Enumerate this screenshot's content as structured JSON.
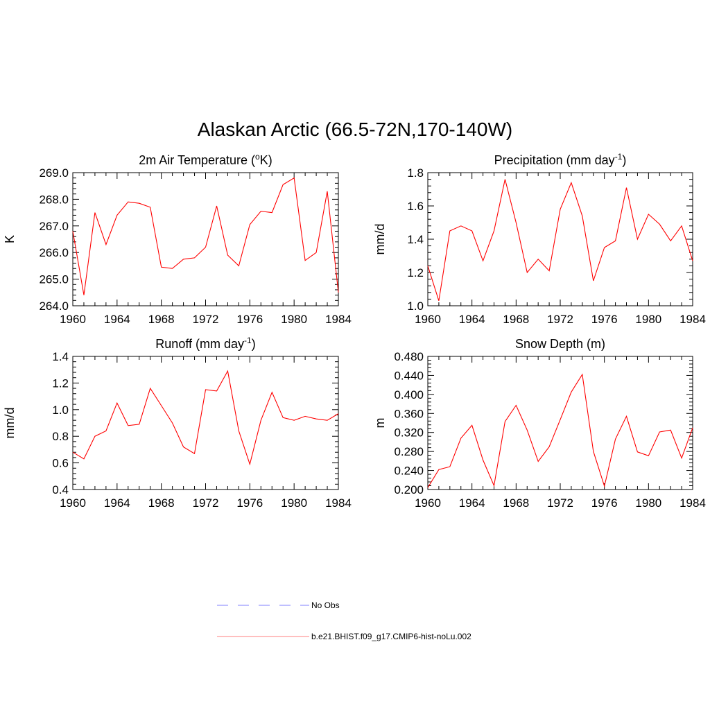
{
  "title": "Alaskan Arctic (66.5-72N,170-140W)",
  "colors": {
    "model": "#ff0000",
    "obs": "#9999ff",
    "axis": "#000000"
  },
  "legend": {
    "entries": [
      {
        "label": "No Obs",
        "style": "dashed",
        "color": "#9999ff"
      },
      {
        "label": "b.e21.BHIST.f09_g17.CMIP6-hist-noLu.002",
        "style": "solid",
        "color": "#ff9999"
      }
    ]
  },
  "chart_data": [
    {
      "type": "line",
      "title": "2m Air Temperature (",
      "title_sup": "o",
      "title_after": "K)",
      "ylabel": "K",
      "xlim": [
        1960,
        1984
      ],
      "xticks": [
        1960,
        1964,
        1968,
        1972,
        1976,
        1980,
        1984
      ],
      "ylim": [
        264.0,
        269.0
      ],
      "yticks": [
        "264.0",
        "265.0",
        "266.0",
        "267.0",
        "268.0",
        "269.0"
      ],
      "x": [
        1960,
        1961,
        1962,
        1963,
        1964,
        1965,
        1966,
        1967,
        1968,
        1969,
        1970,
        1971,
        1972,
        1973,
        1974,
        1975,
        1976,
        1977,
        1978,
        1979,
        1980,
        1981,
        1982,
        1983,
        1984
      ],
      "series": [
        {
          "values": [
            266.8,
            264.4,
            267.5,
            266.3,
            267.4,
            267.9,
            267.85,
            267.7,
            265.45,
            265.4,
            265.75,
            265.8,
            266.2,
            267.75,
            265.9,
            265.5,
            267.05,
            267.55,
            267.5,
            268.55,
            268.8,
            265.7,
            266.0,
            268.3,
            264.5
          ]
        }
      ]
    },
    {
      "type": "line",
      "title": "Precipitation (mm day",
      "title_sup": "-1",
      "title_after": ")",
      "ylabel": "mm/d",
      "xlim": [
        1960,
        1984
      ],
      "xticks": [
        1960,
        1964,
        1968,
        1972,
        1976,
        1980,
        1984
      ],
      "ylim": [
        1.0,
        1.8
      ],
      "yticks": [
        "1.0",
        "1.2",
        "1.4",
        "1.6",
        "1.8"
      ],
      "x": [
        1960,
        1961,
        1962,
        1963,
        1964,
        1965,
        1966,
        1967,
        1968,
        1969,
        1970,
        1971,
        1972,
        1973,
        1974,
        1975,
        1976,
        1977,
        1978,
        1979,
        1980,
        1981,
        1982,
        1983,
        1984
      ],
      "series": [
        {
          "values": [
            1.24,
            1.03,
            1.45,
            1.48,
            1.45,
            1.27,
            1.45,
            1.76,
            1.5,
            1.2,
            1.28,
            1.21,
            1.58,
            1.74,
            1.54,
            1.15,
            1.35,
            1.39,
            1.71,
            1.4,
            1.55,
            1.49,
            1.39,
            1.48,
            1.27
          ]
        }
      ]
    },
    {
      "type": "line",
      "title": "Runoff (mm day",
      "title_sup": "-1",
      "title_after": ")",
      "ylabel": "mm/d",
      "xlim": [
        1960,
        1984
      ],
      "xticks": [
        1960,
        1964,
        1968,
        1972,
        1976,
        1980,
        1984
      ],
      "ylim": [
        0.4,
        1.4
      ],
      "yticks": [
        "0.4",
        "0.6",
        "0.8",
        "1.0",
        "1.2",
        "1.4"
      ],
      "x": [
        1960,
        1961,
        1962,
        1963,
        1964,
        1965,
        1966,
        1967,
        1968,
        1969,
        1970,
        1971,
        1972,
        1973,
        1974,
        1975,
        1976,
        1977,
        1978,
        1979,
        1980,
        1981,
        1982,
        1983,
        1984
      ],
      "series": [
        {
          "values": [
            0.68,
            0.63,
            0.8,
            0.84,
            1.05,
            0.88,
            0.89,
            1.16,
            1.03,
            0.9,
            0.72,
            0.67,
            1.15,
            1.14,
            1.29,
            0.84,
            0.59,
            0.92,
            1.13,
            0.94,
            0.92,
            0.95,
            0.93,
            0.92,
            0.97
          ]
        }
      ]
    },
    {
      "type": "line",
      "title": "Snow Depth (m)",
      "title_sup": "",
      "title_after": "",
      "ylabel": "m",
      "xlim": [
        1960,
        1984
      ],
      "xticks": [
        1960,
        1964,
        1968,
        1972,
        1976,
        1980,
        1984
      ],
      "ylim": [
        0.2,
        0.48
      ],
      "yticks": [
        "0.200",
        "0.240",
        "0.280",
        "0.320",
        "0.360",
        "0.400",
        "0.440",
        "0.480"
      ],
      "x": [
        1960,
        1961,
        1962,
        1963,
        1964,
        1965,
        1966,
        1967,
        1968,
        1969,
        1970,
        1971,
        1972,
        1973,
        1974,
        1975,
        1976,
        1977,
        1978,
        1979,
        1980,
        1981,
        1982,
        1983,
        1984
      ],
      "series": [
        {
          "values": [
            0.204,
            0.242,
            0.248,
            0.308,
            0.335,
            0.262,
            0.208,
            0.343,
            0.377,
            0.325,
            0.259,
            0.29,
            0.347,
            0.405,
            0.442,
            0.28,
            0.207,
            0.306,
            0.354,
            0.279,
            0.271,
            0.321,
            0.325,
            0.266,
            0.33
          ]
        }
      ]
    }
  ]
}
